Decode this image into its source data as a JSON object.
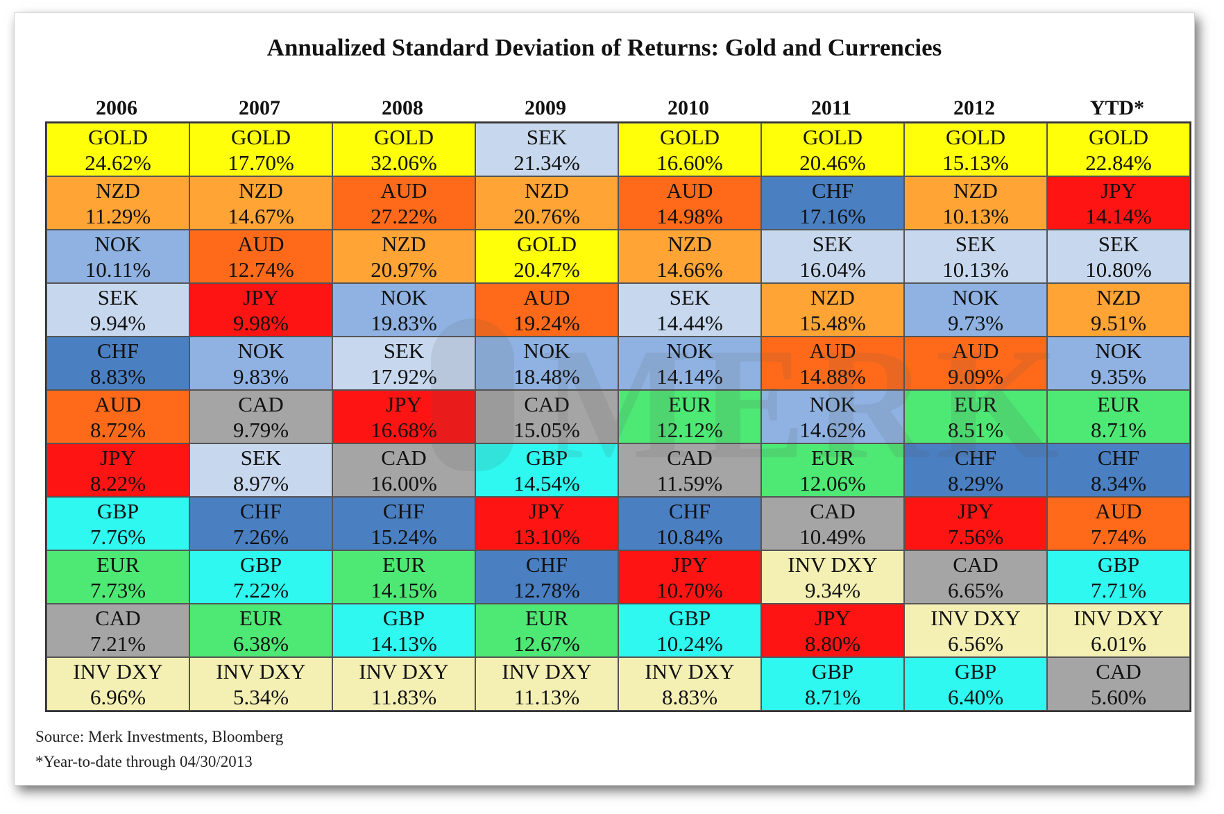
{
  "title": "Annualized Standard Deviation of Returns: Gold and Currencies",
  "years": [
    "2006",
    "2007",
    "2008",
    "2009",
    "2010",
    "2011",
    "2012",
    "YTD*"
  ],
  "colors": {
    "GOLD": "#ffff0a",
    "NZD": "#ffa435",
    "AUD": "#ff6a1a",
    "NOK": "#8fb2e2",
    "SEK": "#c7d8ee",
    "CHF": "#4a7fc2",
    "JPY": "#ff1414",
    "CAD": "#a5a5a5",
    "GBP": "#2ef8f0",
    "EUR": "#4ee874",
    "INV DXY": "#f4f0b4"
  },
  "chart_data": {
    "type": "table",
    "title": "Annualized Standard Deviation of Returns: Gold and Currencies",
    "columns": [
      "2006",
      "2007",
      "2008",
      "2009",
      "2010",
      "2011",
      "2012",
      "YTD*"
    ],
    "rows": [
      [
        {
          "name": "GOLD",
          "value": "24.62%"
        },
        {
          "name": "GOLD",
          "value": "17.70%"
        },
        {
          "name": "GOLD",
          "value": "32.06%"
        },
        {
          "name": "SEK",
          "value": "21.34%"
        },
        {
          "name": "GOLD",
          "value": "16.60%"
        },
        {
          "name": "GOLD",
          "value": "20.46%"
        },
        {
          "name": "GOLD",
          "value": "15.13%"
        },
        {
          "name": "GOLD",
          "value": "22.84%"
        }
      ],
      [
        {
          "name": "NZD",
          "value": "11.29%"
        },
        {
          "name": "NZD",
          "value": "14.67%"
        },
        {
          "name": "AUD",
          "value": "27.22%"
        },
        {
          "name": "NZD",
          "value": "20.76%"
        },
        {
          "name": "AUD",
          "value": "14.98%"
        },
        {
          "name": "CHF",
          "value": "17.16%"
        },
        {
          "name": "NZD",
          "value": "10.13%"
        },
        {
          "name": "JPY",
          "value": "14.14%"
        }
      ],
      [
        {
          "name": "NOK",
          "value": "10.11%"
        },
        {
          "name": "AUD",
          "value": "12.74%"
        },
        {
          "name": "NZD",
          "value": "20.97%"
        },
        {
          "name": "GOLD",
          "value": "20.47%"
        },
        {
          "name": "NZD",
          "value": "14.66%"
        },
        {
          "name": "SEK",
          "value": "16.04%"
        },
        {
          "name": "SEK",
          "value": "10.13%"
        },
        {
          "name": "SEK",
          "value": "10.80%"
        }
      ],
      [
        {
          "name": "SEK",
          "value": "9.94%"
        },
        {
          "name": "JPY",
          "value": "9.98%"
        },
        {
          "name": "NOK",
          "value": "19.83%"
        },
        {
          "name": "AUD",
          "value": "19.24%"
        },
        {
          "name": "SEK",
          "value": "14.44%"
        },
        {
          "name": "NZD",
          "value": "15.48%"
        },
        {
          "name": "NOK",
          "value": "9.73%"
        },
        {
          "name": "NZD",
          "value": "9.51%"
        }
      ],
      [
        {
          "name": "CHF",
          "value": "8.83%"
        },
        {
          "name": "NOK",
          "value": "9.83%"
        },
        {
          "name": "SEK",
          "value": "17.92%"
        },
        {
          "name": "NOK",
          "value": "18.48%"
        },
        {
          "name": "NOK",
          "value": "14.14%"
        },
        {
          "name": "AUD",
          "value": "14.88%"
        },
        {
          "name": "AUD",
          "value": "9.09%"
        },
        {
          "name": "NOK",
          "value": "9.35%"
        }
      ],
      [
        {
          "name": "AUD",
          "value": "8.72%"
        },
        {
          "name": "CAD",
          "value": "9.79%"
        },
        {
          "name": "JPY",
          "value": "16.68%"
        },
        {
          "name": "CAD",
          "value": "15.05%"
        },
        {
          "name": "EUR",
          "value": "12.12%"
        },
        {
          "name": "NOK",
          "value": "14.62%"
        },
        {
          "name": "EUR",
          "value": "8.51%"
        },
        {
          "name": "EUR",
          "value": "8.71%"
        }
      ],
      [
        {
          "name": "JPY",
          "value": "8.22%"
        },
        {
          "name": "SEK",
          "value": "8.97%"
        },
        {
          "name": "CAD",
          "value": "16.00%"
        },
        {
          "name": "GBP",
          "value": "14.54%"
        },
        {
          "name": "CAD",
          "value": "11.59%"
        },
        {
          "name": "EUR",
          "value": "12.06%"
        },
        {
          "name": "CHF",
          "value": "8.29%"
        },
        {
          "name": "CHF",
          "value": "8.34%"
        }
      ],
      [
        {
          "name": "GBP",
          "value": "7.76%"
        },
        {
          "name": "CHF",
          "value": "7.26%"
        },
        {
          "name": "CHF",
          "value": "15.24%"
        },
        {
          "name": "JPY",
          "value": "13.10%"
        },
        {
          "name": "CHF",
          "value": "10.84%"
        },
        {
          "name": "CAD",
          "value": "10.49%"
        },
        {
          "name": "JPY",
          "value": "7.56%"
        },
        {
          "name": "AUD",
          "value": "7.74%"
        }
      ],
      [
        {
          "name": "EUR",
          "value": "7.73%"
        },
        {
          "name": "GBP",
          "value": "7.22%"
        },
        {
          "name": "EUR",
          "value": "14.15%"
        },
        {
          "name": "CHF",
          "value": "12.78%"
        },
        {
          "name": "JPY",
          "value": "10.70%"
        },
        {
          "name": "INV DXY",
          "value": "9.34%"
        },
        {
          "name": "CAD",
          "value": "6.65%"
        },
        {
          "name": "GBP",
          "value": "7.71%"
        }
      ],
      [
        {
          "name": "CAD",
          "value": "7.21%"
        },
        {
          "name": "EUR",
          "value": "6.38%"
        },
        {
          "name": "GBP",
          "value": "14.13%"
        },
        {
          "name": "EUR",
          "value": "12.67%"
        },
        {
          "name": "GBP",
          "value": "10.24%"
        },
        {
          "name": "JPY",
          "value": "8.80%"
        },
        {
          "name": "INV DXY",
          "value": "6.56%"
        },
        {
          "name": "INV DXY",
          "value": "6.01%"
        }
      ],
      [
        {
          "name": "INV DXY",
          "value": "6.96%"
        },
        {
          "name": "INV DXY",
          "value": "5.34%"
        },
        {
          "name": "INV DXY",
          "value": "11.83%"
        },
        {
          "name": "INV DXY",
          "value": "11.13%"
        },
        {
          "name": "INV DXY",
          "value": "8.83%"
        },
        {
          "name": "GBP",
          "value": "8.71%"
        },
        {
          "name": "GBP",
          "value": "6.40%"
        },
        {
          "name": "CAD",
          "value": "5.60%"
        }
      ]
    ]
  },
  "notes": {
    "source": "Source: Merk Investments, Bloomberg",
    "footnote": "*Year-to-date through 04/30/2013"
  },
  "watermark": {
    "text": "MERK",
    "icon": "merk-crest-icon"
  }
}
